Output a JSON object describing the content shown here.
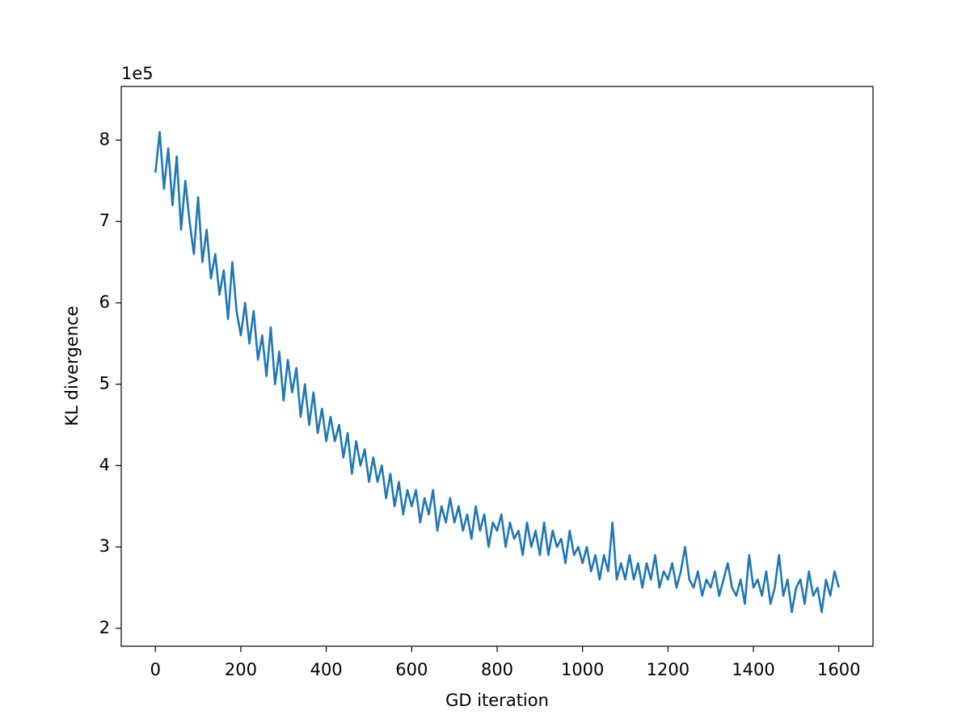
{
  "chart_data": {
    "type": "line",
    "x_label": "GD iteration",
    "y_label": "KL divergence",
    "y_offset_label": "1e5",
    "x": [
      0,
      10,
      20,
      30,
      40,
      50,
      60,
      70,
      80,
      90,
      100,
      110,
      120,
      130,
      140,
      150,
      160,
      170,
      180,
      190,
      200,
      210,
      220,
      230,
      240,
      250,
      260,
      270,
      280,
      290,
      300,
      310,
      320,
      330,
      340,
      350,
      360,
      370,
      380,
      390,
      400,
      410,
      420,
      430,
      440,
      450,
      460,
      470,
      480,
      490,
      500,
      510,
      520,
      530,
      540,
      550,
      560,
      570,
      580,
      590,
      600,
      610,
      620,
      630,
      640,
      650,
      660,
      670,
      680,
      690,
      700,
      710,
      720,
      730,
      740,
      750,
      760,
      770,
      780,
      790,
      800,
      810,
      820,
      830,
      840,
      850,
      860,
      870,
      880,
      890,
      900,
      910,
      920,
      930,
      940,
      950,
      960,
      970,
      980,
      990,
      1000,
      1010,
      1020,
      1030,
      1040,
      1050,
      1060,
      1070,
      1080,
      1090,
      1100,
      1110,
      1120,
      1130,
      1140,
      1150,
      1160,
      1170,
      1180,
      1190,
      1200,
      1210,
      1220,
      1230,
      1240,
      1250,
      1260,
      1270,
      1280,
      1290,
      1300,
      1310,
      1320,
      1330,
      1340,
      1350,
      1360,
      1370,
      1380,
      1390,
      1400,
      1410,
      1420,
      1430,
      1440,
      1450,
      1460,
      1470,
      1480,
      1490,
      1500,
      1510,
      1520,
      1530,
      1540,
      1550,
      1560,
      1570,
      1580,
      1590,
      1600
    ],
    "series": [
      {
        "name": "KL divergence",
        "color": "#1f77b4",
        "values": [
          7.6,
          8.1,
          7.4,
          7.9,
          7.2,
          7.8,
          6.9,
          7.5,
          7.0,
          6.6,
          7.3,
          6.5,
          6.9,
          6.3,
          6.6,
          6.1,
          6.4,
          5.8,
          6.5,
          5.9,
          5.6,
          6.0,
          5.5,
          5.9,
          5.3,
          5.6,
          5.1,
          5.7,
          5.0,
          5.4,
          4.8,
          5.3,
          4.9,
          5.2,
          4.6,
          5.0,
          4.5,
          4.9,
          4.4,
          4.7,
          4.3,
          4.6,
          4.3,
          4.5,
          4.1,
          4.4,
          3.9,
          4.3,
          4.0,
          4.2,
          3.8,
          4.1,
          3.8,
          4.0,
          3.6,
          3.9,
          3.5,
          3.8,
          3.4,
          3.7,
          3.5,
          3.7,
          3.3,
          3.6,
          3.4,
          3.7,
          3.2,
          3.5,
          3.3,
          3.6,
          3.3,
          3.5,
          3.2,
          3.4,
          3.1,
          3.5,
          3.2,
          3.4,
          3.0,
          3.3,
          3.2,
          3.4,
          3.0,
          3.3,
          3.1,
          3.2,
          2.9,
          3.3,
          3.0,
          3.2,
          2.9,
          3.3,
          2.9,
          3.2,
          3.0,
          3.1,
          2.8,
          3.2,
          2.9,
          3.0,
          2.8,
          3.0,
          2.7,
          2.9,
          2.6,
          2.9,
          2.7,
          3.3,
          2.6,
          2.8,
          2.6,
          2.9,
          2.6,
          2.8,
          2.5,
          2.8,
          2.6,
          2.9,
          2.5,
          2.7,
          2.6,
          2.8,
          2.5,
          2.7,
          3.0,
          2.6,
          2.5,
          2.7,
          2.4,
          2.6,
          2.5,
          2.7,
          2.4,
          2.6,
          2.8,
          2.5,
          2.4,
          2.6,
          2.3,
          2.9,
          2.5,
          2.6,
          2.4,
          2.7,
          2.3,
          2.5,
          2.9,
          2.4,
          2.6,
          2.2,
          2.5,
          2.6,
          2.3,
          2.7,
          2.4,
          2.5,
          2.2,
          2.6,
          2.4,
          2.7,
          2.5
        ]
      }
    ],
    "xlim": [
      -80,
      1680
    ],
    "ylim": [
      1.78,
      8.66
    ],
    "xticks": [
      0,
      200,
      400,
      600,
      800,
      1000,
      1200,
      1400,
      1600
    ],
    "yticks": [
      2,
      3,
      4,
      5,
      6,
      7,
      8
    ]
  }
}
